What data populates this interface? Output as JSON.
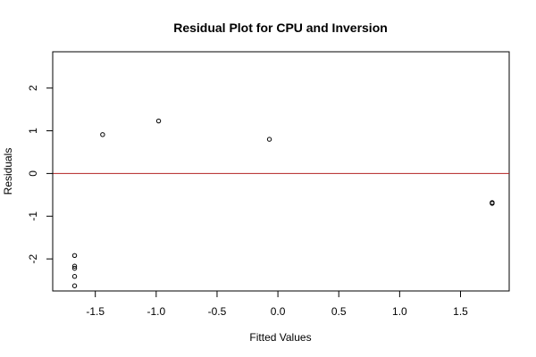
{
  "chart_data": {
    "type": "scatter",
    "title": "Residual Plot for CPU and Inversion",
    "xlabel": "Fitted Values",
    "ylabel": "Residuals",
    "xlim": [
      -1.85,
      1.9
    ],
    "ylim": [
      -2.75,
      2.85
    ],
    "xticks": [
      -1.5,
      -1.0,
      -0.5,
      0.0,
      0.5,
      1.0,
      1.5
    ],
    "xtick_labels": [
      "-1.5",
      "-1.0",
      "-0.5",
      "0.0",
      "0.5",
      "1.0",
      "1.5"
    ],
    "yticks": [
      -2,
      -1,
      0,
      1,
      2
    ],
    "ytick_labels": [
      "-2",
      "-1",
      "0",
      "1",
      "2"
    ],
    "reference_line": {
      "y": 0,
      "color": "#b22222"
    },
    "grid": false,
    "legend": "none",
    "points": [
      {
        "x": -1.67,
        "y": -1.92
      },
      {
        "x": -1.67,
        "y": -2.17
      },
      {
        "x": -1.67,
        "y": -2.22
      },
      {
        "x": -1.67,
        "y": -2.41
      },
      {
        "x": -1.67,
        "y": -2.63
      },
      {
        "x": -1.44,
        "y": 0.91
      },
      {
        "x": -0.98,
        "y": 1.23
      },
      {
        "x": -0.07,
        "y": 0.8
      },
      {
        "x": 1.76,
        "y": -0.68
      },
      {
        "x": 1.76,
        "y": -0.7
      }
    ]
  }
}
